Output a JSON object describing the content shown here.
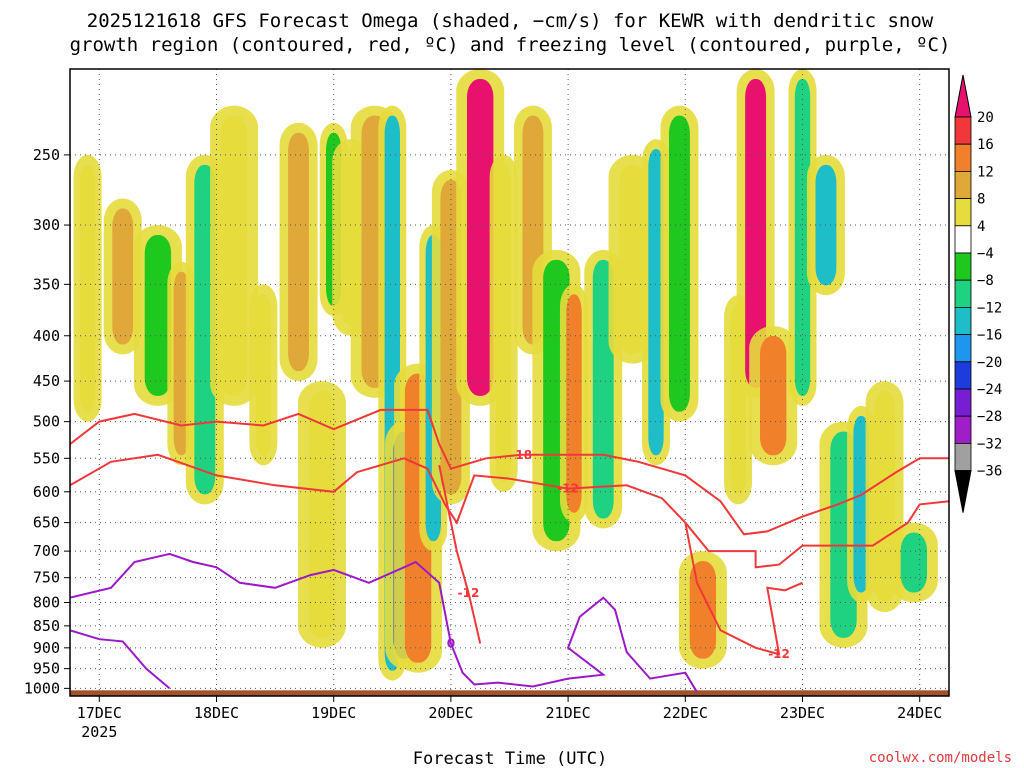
{
  "chart_data": {
    "type": "heatmap",
    "title_lines": [
      "2025121618 GFS Forecast Omega (shaded, −cm/s) for KEWR with dendritic snow",
      "growth region (contoured, red, ºC) and freezing level (contoured, purple, ºC)"
    ],
    "xlabel": "Forecast Time (UTC)",
    "credit": "coolwx.com/models",
    "x_ticks": [
      {
        "label": "17DEC",
        "sub": "2025",
        "day": 0
      },
      {
        "label": "18DEC",
        "sub": "",
        "day": 1
      },
      {
        "label": "19DEC",
        "sub": "",
        "day": 2
      },
      {
        "label": "20DEC",
        "sub": "",
        "day": 3
      },
      {
        "label": "21DEC",
        "sub": "",
        "day": 4
      },
      {
        "label": "22DEC",
        "sub": "",
        "day": 5
      },
      {
        "label": "23DEC",
        "sub": "",
        "day": 6
      },
      {
        "label": "24DEC",
        "sub": "",
        "day": 7
      }
    ],
    "x_range_days": [
      -0.25,
      7.25
    ],
    "y_axis": {
      "scale": "log-pressure",
      "range_hpa": [
        1020,
        200
      ],
      "ticks": [
        1000,
        950,
        900,
        850,
        800,
        750,
        700,
        650,
        600,
        550,
        500,
        450,
        400,
        350,
        300,
        250
      ]
    },
    "grid": true,
    "colorbar": {
      "labels": [
        "20",
        "16",
        "12",
        "8",
        "4",
        "−4",
        "−8",
        "−12",
        "−16",
        "−20",
        "−24",
        "−28",
        "−32",
        "−36"
      ],
      "colors": [
        "#e8126e",
        "#f0383a",
        "#f0802a",
        "#e0a838",
        "#e6dc3c",
        "#ffffff",
        "#1ec81e",
        "#1ed282",
        "#1ebec8",
        "#1e96f0",
        "#1e3cdc",
        "#781ed2",
        "#a01ec8",
        "#a0a0a0",
        "#000000"
      ]
    },
    "series": [
      {
        "name": "dendritic -12",
        "label": "-12",
        "color": "#f0383a",
        "points": [
          [
            -0.25,
            590
          ],
          [
            0.1,
            555
          ],
          [
            0.5,
            545
          ],
          [
            1.0,
            575
          ],
          [
            1.5,
            590
          ],
          [
            2.0,
            600
          ],
          [
            2.2,
            570
          ],
          [
            2.6,
            550
          ],
          [
            2.8,
            565
          ],
          [
            2.95,
            620
          ],
          [
            3.05,
            650
          ],
          [
            3.2,
            575
          ],
          [
            3.5,
            580
          ],
          [
            4.0,
            595
          ],
          [
            4.5,
            590
          ],
          [
            4.8,
            610
          ],
          [
            5.0,
            650
          ],
          [
            5.2,
            700
          ],
          [
            5.6,
            700
          ],
          [
            5.6,
            730
          ],
          [
            5.8,
            725
          ],
          [
            6.0,
            690
          ],
          [
            6.3,
            690
          ],
          [
            6.6,
            690
          ],
          [
            6.9,
            650
          ],
          [
            7.0,
            620
          ],
          [
            7.25,
            615
          ]
        ]
      },
      {
        "name": "dendritic -18",
        "label": "-18",
        "color": "#f0383a",
        "points": [
          [
            -0.25,
            530
          ],
          [
            0.0,
            500
          ],
          [
            0.3,
            490
          ],
          [
            0.7,
            505
          ],
          [
            1.0,
            500
          ],
          [
            1.4,
            505
          ],
          [
            1.7,
            490
          ],
          [
            2.0,
            510
          ],
          [
            2.4,
            485
          ],
          [
            2.8,
            485
          ],
          [
            2.9,
            530
          ],
          [
            3.0,
            565
          ],
          [
            3.3,
            550
          ],
          [
            3.6,
            545
          ],
          [
            4.0,
            545
          ],
          [
            4.3,
            545
          ],
          [
            4.6,
            555
          ],
          [
            5.0,
            575
          ],
          [
            5.3,
            615
          ],
          [
            5.5,
            670
          ],
          [
            5.7,
            665
          ],
          [
            6.0,
            640
          ],
          [
            6.3,
            620
          ],
          [
            6.5,
            605
          ],
          [
            6.8,
            570
          ],
          [
            7.0,
            550
          ],
          [
            7.25,
            550
          ]
        ]
      },
      {
        "name": "dendritic -12 (lower branch)",
        "label": "-12",
        "color": "#f0383a",
        "points": [
          [
            2.9,
            560
          ],
          [
            3.05,
            700
          ],
          [
            3.15,
            780
          ],
          [
            3.25,
            890
          ]
        ]
      },
      {
        "name": "dendritic -12 (low level)",
        "label": "-12",
        "color": "#f0383a",
        "points": [
          [
            5.0,
            650
          ],
          [
            5.1,
            760
          ],
          [
            5.3,
            860
          ],
          [
            5.6,
            900
          ],
          [
            5.8,
            915
          ],
          [
            5.7,
            770
          ],
          [
            5.85,
            775
          ],
          [
            6.0,
            760
          ]
        ]
      },
      {
        "name": "freezing level 0",
        "label": "0",
        "color": "#9b19c8",
        "points": [
          [
            -0.25,
            790
          ],
          [
            0.1,
            770
          ],
          [
            0.3,
            720
          ],
          [
            0.6,
            705
          ],
          [
            0.8,
            720
          ],
          [
            1.0,
            730
          ],
          [
            1.2,
            760
          ],
          [
            1.5,
            770
          ],
          [
            1.8,
            745
          ],
          [
            2.0,
            735
          ],
          [
            2.3,
            760
          ],
          [
            2.6,
            730
          ],
          [
            2.7,
            720
          ],
          [
            2.9,
            760
          ],
          [
            3.0,
            890
          ],
          [
            3.1,
            960
          ],
          [
            3.2,
            990
          ],
          [
            3.4,
            985
          ],
          [
            3.7,
            995
          ],
          [
            4.0,
            975
          ],
          [
            4.3,
            965
          ],
          [
            4.0,
            900
          ],
          [
            4.1,
            830
          ],
          [
            4.3,
            790
          ],
          [
            4.4,
            815
          ],
          [
            4.5,
            910
          ],
          [
            4.7,
            975
          ],
          [
            5.0,
            960
          ],
          [
            5.1,
            1010
          ]
        ]
      },
      {
        "name": "freezing level 0 (west)",
        "label": "",
        "color": "#9b19c8",
        "points": [
          [
            -0.25,
            860
          ],
          [
            0.0,
            880
          ],
          [
            0.2,
            885
          ],
          [
            0.4,
            950
          ],
          [
            0.6,
            1000
          ]
        ]
      }
    ],
    "omega_cells": [
      {
        "day": -0.1,
        "p_top": 250,
        "p_bot": 500,
        "value": 6
      },
      {
        "day": 0.2,
        "p_top": 280,
        "p_bot": 420,
        "value": 10
      },
      {
        "day": 0.5,
        "p_top": 300,
        "p_bot": 480,
        "value": -6
      },
      {
        "day": 0.7,
        "p_top": 330,
        "p_bot": 560,
        "value": 9
      },
      {
        "day": 0.9,
        "p_top": 250,
        "p_bot": 620,
        "value": -10
      },
      {
        "day": 1.15,
        "p_top": 220,
        "p_bot": 480,
        "value": 7
      },
      {
        "day": 1.4,
        "p_top": 350,
        "p_bot": 560,
        "value": 5
      },
      {
        "day": 1.7,
        "p_top": 230,
        "p_bot": 450,
        "value": 9
      },
      {
        "day": 1.9,
        "p_top": 450,
        "p_bot": 900,
        "value": 6
      },
      {
        "day": 2.0,
        "p_top": 230,
        "p_bot": 380,
        "value": -6
      },
      {
        "day": 2.15,
        "p_top": 240,
        "p_bot": 400,
        "value": 6
      },
      {
        "day": 2.35,
        "p_top": 220,
        "p_bot": 470,
        "value": 10
      },
      {
        "day": 2.5,
        "p_top": 220,
        "p_bot": 980,
        "value": -14
      },
      {
        "day": 2.6,
        "p_top": 500,
        "p_bot": 950,
        "value": -22
      },
      {
        "day": 2.72,
        "p_top": 430,
        "p_bot": 960,
        "value": 12
      },
      {
        "day": 2.85,
        "p_top": 300,
        "p_bot": 700,
        "value": -12
      },
      {
        "day": 3.0,
        "p_top": 260,
        "p_bot": 620,
        "value": 8
      },
      {
        "day": 3.25,
        "p_top": 200,
        "p_bot": 480,
        "value": 20
      },
      {
        "day": 3.45,
        "p_top": 250,
        "p_bot": 600,
        "value": 6
      },
      {
        "day": 3.7,
        "p_top": 220,
        "p_bot": 420,
        "value": 8
      },
      {
        "day": 3.9,
        "p_top": 320,
        "p_bot": 700,
        "value": -6
      },
      {
        "day": 4.05,
        "p_top": 350,
        "p_bot": 650,
        "value": 14
      },
      {
        "day": 4.3,
        "p_top": 320,
        "p_bot": 660,
        "value": -10
      },
      {
        "day": 4.55,
        "p_top": 250,
        "p_bot": 430,
        "value": 6
      },
      {
        "day": 4.75,
        "p_top": 240,
        "p_bot": 560,
        "value": -14
      },
      {
        "day": 4.95,
        "p_top": 220,
        "p_bot": 500,
        "value": -6
      },
      {
        "day": 5.15,
        "p_top": 700,
        "p_bot": 950,
        "value": 12
      },
      {
        "day": 5.45,
        "p_top": 360,
        "p_bot": 620,
        "value": 6
      },
      {
        "day": 5.6,
        "p_top": 200,
        "p_bot": 470,
        "value": 20
      },
      {
        "day": 5.75,
        "p_top": 390,
        "p_bot": 560,
        "value": 12
      },
      {
        "day": 6.0,
        "p_top": 200,
        "p_bot": 480,
        "value": -8
      },
      {
        "day": 6.2,
        "p_top": 250,
        "p_bot": 360,
        "value": -12
      },
      {
        "day": 6.35,
        "p_top": 500,
        "p_bot": 900,
        "value": -8
      },
      {
        "day": 6.5,
        "p_top": 480,
        "p_bot": 800,
        "value": -14
      },
      {
        "day": 6.7,
        "p_top": 450,
        "p_bot": 820,
        "value": 6
      },
      {
        "day": 6.95,
        "p_top": 650,
        "p_bot": 800,
        "value": -10
      }
    ]
  }
}
